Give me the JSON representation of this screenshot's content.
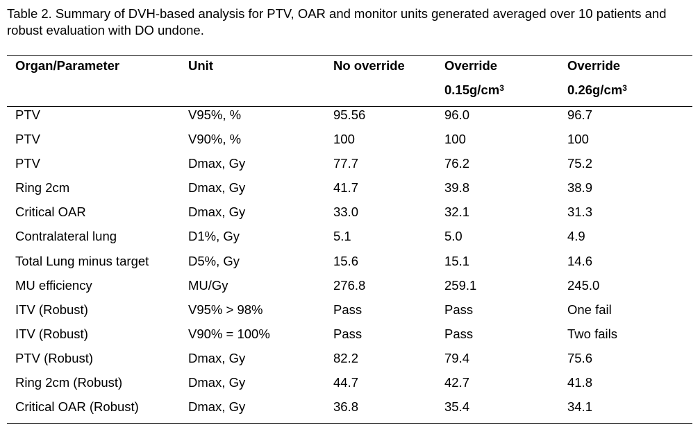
{
  "caption": "Table 2. Summary of DVH-based analysis for PTV, OAR and monitor units generated averaged over 10 patients and robust evaluation with DO undone.",
  "headers": [
    {
      "line1": "Organ/Parameter"
    },
    {
      "line1": "Unit"
    },
    {
      "line1": "No override"
    },
    {
      "line1": "Override",
      "line2": "0.15g/cm",
      "sup": "3"
    },
    {
      "line1": "Override",
      "line2": "0.26g/cm",
      "sup": "3"
    }
  ],
  "rows": [
    [
      "PTV",
      "V95%, %",
      "95.56",
      "96.0",
      "96.7"
    ],
    [
      "PTV",
      "V90%, %",
      "100",
      "100",
      "100"
    ],
    [
      "PTV",
      "Dmax, Gy",
      "77.7",
      "76.2",
      "75.2"
    ],
    [
      "Ring 2cm",
      "Dmax, Gy",
      "41.7",
      "39.8",
      "38.9"
    ],
    [
      "Critical OAR",
      "Dmax, Gy",
      "33.0",
      "32.1",
      "31.3"
    ],
    [
      "Contralateral lung",
      "D1%, Gy",
      "5.1",
      "5.0",
      "4.9"
    ],
    [
      "Total Lung minus target",
      "D5%, Gy",
      "15.6",
      "15.1",
      "14.6"
    ],
    [
      "MU efficiency",
      "MU/Gy",
      "276.8",
      "259.1",
      "245.0"
    ],
    [
      "ITV (Robust)",
      "V95% > 98%",
      "Pass",
      "Pass",
      "One fail"
    ],
    [
      "ITV (Robust)",
      "V90% = 100%",
      "Pass",
      "Pass",
      "Two fails"
    ],
    [
      "PTV (Robust)",
      "Dmax, Gy",
      "82.2",
      "79.4",
      "75.6"
    ],
    [
      "Ring 2cm (Robust)",
      "Dmax, Gy",
      "44.7",
      "42.7",
      "41.8"
    ],
    [
      "Critical OAR (Robust)",
      "Dmax, Gy",
      "36.8",
      "35.4",
      "34.1"
    ]
  ]
}
